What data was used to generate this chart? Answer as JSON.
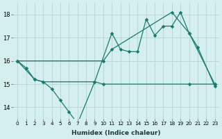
{
  "xlabel": "Humidex (Indice chaleur)",
  "bg_color": "#d5eeee",
  "line_color": "#1a7a6e",
  "grid_color": "#b8d8d8",
  "ylim": [
    13.5,
    18.5
  ],
  "xlim": [
    -0.5,
    23.5
  ],
  "yticks": [
    14,
    15,
    16,
    17,
    18
  ],
  "xticks": [
    0,
    1,
    2,
    3,
    4,
    5,
    6,
    7,
    8,
    9,
    10,
    11,
    12,
    13,
    14,
    15,
    16,
    17,
    18,
    19,
    20,
    21,
    22,
    23
  ],
  "line1_x": [
    0,
    1,
    2,
    3,
    4,
    5,
    6,
    7,
    9,
    11,
    12,
    13,
    14,
    15,
    16,
    17,
    18,
    19,
    20,
    21,
    23
  ],
  "line1_y": [
    16.0,
    15.7,
    15.2,
    15.1,
    14.8,
    14.3,
    13.8,
    13.3,
    15.1,
    17.2,
    16.5,
    16.4,
    16.4,
    17.8,
    17.1,
    17.5,
    17.5,
    18.1,
    17.2,
    16.6,
    14.9
  ],
  "line2_x": [
    0,
    2,
    3,
    9,
    10,
    20,
    23
  ],
  "line2_y": [
    16.0,
    15.2,
    15.1,
    15.1,
    15.0,
    15.0,
    15.0
  ],
  "line3_x": [
    0,
    10,
    11,
    18,
    20,
    23
  ],
  "line3_y": [
    16.0,
    16.0,
    16.5,
    18.1,
    17.2,
    15.0
  ]
}
